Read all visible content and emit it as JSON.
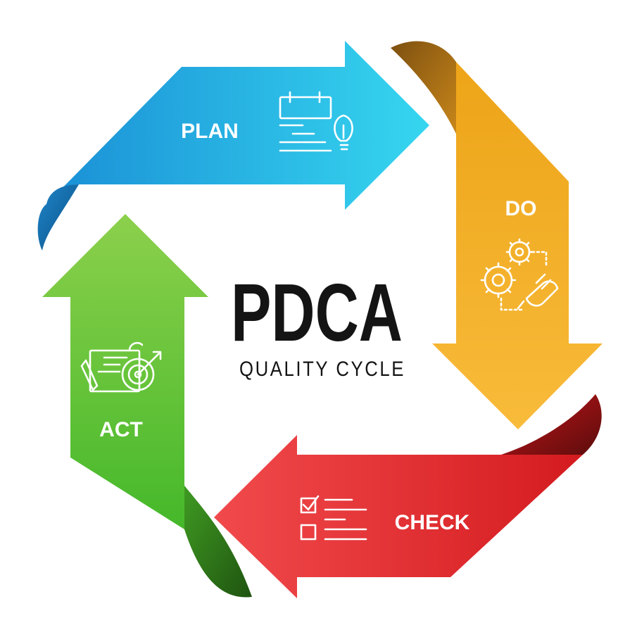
{
  "diagram": {
    "title": "PDCA",
    "subtitle": "QUALITY CYCLE",
    "steps": [
      {
        "id": "plan",
        "label": "PLAN",
        "icon": "calendar-lightbulb-icon",
        "color": "#1fa7e2",
        "color_light": "#35d3ee",
        "color_dark": "#0b5f98"
      },
      {
        "id": "do",
        "label": "DO",
        "icon": "gears-wrench-icon",
        "color": "#f3a21c",
        "color_light": "#f7b938",
        "color_dark": "#8d5a0c"
      },
      {
        "id": "check",
        "label": "CHECK",
        "icon": "checklist-icon",
        "color": "#e7262a",
        "color_light": "#f0474b",
        "color_dark": "#7a1010"
      },
      {
        "id": "act",
        "label": "ACT",
        "icon": "target-document-icon",
        "color": "#4fbb2d",
        "color_light": "#86d04a",
        "color_dark": "#2b6d17"
      }
    ]
  }
}
